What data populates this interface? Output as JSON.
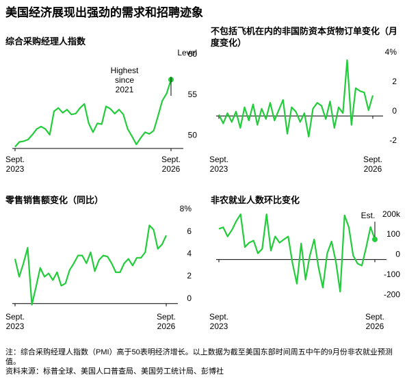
{
  "title": "美国经济展现出强劲的需求和招聘迹象",
  "note": "注：综合采购经理人指数（PMI）高于50表明经济增长。以上数据为截至美国东部时间周五中午的9月份非农就业预测值。",
  "source": "资料来源：标普全球、美国人口普查局、美国劳工统计局、彭博社",
  "chart_data": [
    {
      "type": "line",
      "title": "综合采购经理人指数",
      "ylabel": "Level",
      "annotation": "Highest\nsince\n2021",
      "highlight_last": true,
      "color": "#22cc3a",
      "grid": false,
      "categories": [
        "Sept.\n2023",
        null,
        null,
        null,
        null,
        null,
        null,
        null,
        null,
        null,
        null,
        null,
        null,
        null,
        null,
        null,
        null,
        null,
        null,
        null,
        null,
        null,
        null,
        null,
        null,
        null,
        null,
        null,
        null,
        null,
        null,
        null,
        null,
        null,
        null,
        null,
        "Sept.\n2026"
      ],
      "values": [
        49.2,
        49.8,
        49.9,
        50.1,
        50.7,
        51.4,
        51.7,
        51.4,
        50.7,
        53.6,
        54.0,
        53.4,
        53.8,
        53.2,
        53.3,
        54.0,
        54.5,
        52.1,
        51.0,
        52.1,
        52.0,
        54.2,
        53.9,
        53.3,
        53.8,
        53.2,
        51.4,
        50.5,
        49.5,
        50.3,
        51.0,
        50.8,
        51.2,
        53.0,
        54.9,
        55.8,
        57.5
      ],
      "ylim": [
        49,
        61
      ],
      "yticks": [
        50,
        55,
        60
      ]
    },
    {
      "type": "line",
      "title": "不包括飞机在内的非国防资本货物订单变化（月度变化）",
      "color": "#22cc3a",
      "grid": false,
      "categories": [
        "Sept.\n2023",
        null,
        null,
        null,
        null,
        null,
        null,
        null,
        null,
        null,
        null,
        null,
        null,
        null,
        null,
        null,
        null,
        null,
        null,
        null,
        null,
        null,
        null,
        null,
        null,
        null,
        null,
        null,
        null,
        null,
        null,
        null,
        null,
        null,
        null,
        null,
        "Sept.\n2026"
      ],
      "values": [
        0.1,
        -0.5,
        0.2,
        -0.4,
        0.3,
        -0.8,
        0.6,
        -0.3,
        0.8,
        -0.6,
        0.5,
        -0.2,
        0.9,
        -0.3,
        0.4,
        1.1,
        -1.2,
        0.6,
        0.3,
        -0.4,
        0.2,
        -1.4,
        0.5,
        0.9,
        0.7,
        -0.2,
        1.0,
        -0.8,
        0.6,
        0.2,
        3.8,
        -0.6,
        1.9,
        1.7,
        1.6,
        0.4,
        1.4
      ],
      "ylim": [
        -2.2,
        4.4
      ],
      "yticks": [
        -2,
        0,
        2,
        {
          "value": 4,
          "label": "4%"
        }
      ]
    },
    {
      "type": "line",
      "title": "零售销售额变化（同比）",
      "color": "#22cc3a",
      "grid": false,
      "categories": [
        "Sept.\n2023",
        null,
        null,
        null,
        null,
        null,
        null,
        null,
        null,
        null,
        null,
        null,
        null,
        null,
        null,
        null,
        null,
        null,
        null,
        null,
        null,
        null,
        null,
        null,
        null,
        null,
        null,
        null,
        null,
        null,
        null,
        null,
        null,
        null,
        null,
        null,
        "Sept.\n2026"
      ],
      "values": [
        4.0,
        2.4,
        3.6,
        5.0,
        -0.1,
        1.5,
        3.2,
        2.4,
        2.7,
        2.1,
        2.8,
        1.6,
        1.8,
        3.0,
        3.6,
        4.3,
        4.3,
        3.6,
        4.6,
        2.9,
        3.9,
        4.3,
        4.2,
        3.6,
        2.8,
        2.8,
        3.6,
        4.0,
        3.4,
        4.1,
        4.1,
        4.6,
        7.0,
        6.6,
        4.9,
        5.3,
        6.1
      ],
      "ylim": [
        -0.2,
        8.8
      ],
      "yticks": [
        0,
        2,
        4,
        6,
        {
          "value": 8,
          "label": "8%"
        }
      ]
    },
    {
      "type": "line",
      "title": "非农就业人数环比变化",
      "annotation": "Est.",
      "highlight_last": true,
      "color": "#22cc3a",
      "grid": false,
      "categories": [
        "Sept.\n2023",
        null,
        null,
        null,
        null,
        null,
        null,
        null,
        null,
        null,
        null,
        null,
        null,
        null,
        null,
        null,
        null,
        null,
        null,
        null,
        null,
        null,
        null,
        null,
        null,
        null,
        null,
        null,
        null,
        null,
        null,
        null,
        null,
        null,
        null,
        null,
        "Sept.\n2026"
      ],
      "values": [
        153,
        160,
        115,
        147,
        190,
        225,
        62,
        84,
        94,
        31,
        53,
        225,
        44,
        115,
        84,
        100,
        115,
        -20,
        -120,
        80,
        -100,
        20,
        100,
        -40,
        -140,
        30,
        90,
        -10,
        -160,
        220,
        160,
        20,
        -20,
        -30,
        60,
        162,
        100
      ],
      "ylim": [
        -230,
        270
      ],
      "yticks": [
        -200,
        -100,
        0,
        100,
        {
          "value": 200,
          "label": "200k"
        }
      ]
    }
  ]
}
